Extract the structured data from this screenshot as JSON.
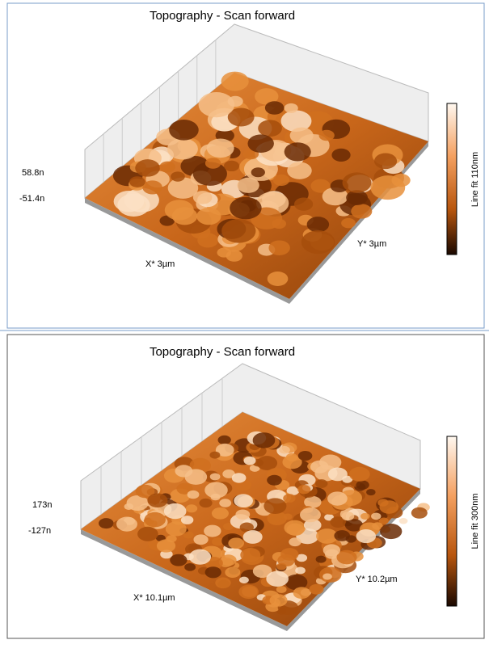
{
  "panels": [
    {
      "title": "Topography - Scan forward",
      "z_max": "58.8n",
      "z_min": "-51.4n",
      "x_label": "X* 3µm",
      "y_label": "Y* 3µm",
      "colorbar_label": "Line fit 110nm"
    },
    {
      "title": "Topography - Scan forward",
      "z_max": "173n",
      "z_min": "-127n",
      "x_label": "X* 10.1µm",
      "y_label": "Y* 10.2µm",
      "colorbar_label": "Line fit 300nm"
    }
  ]
}
